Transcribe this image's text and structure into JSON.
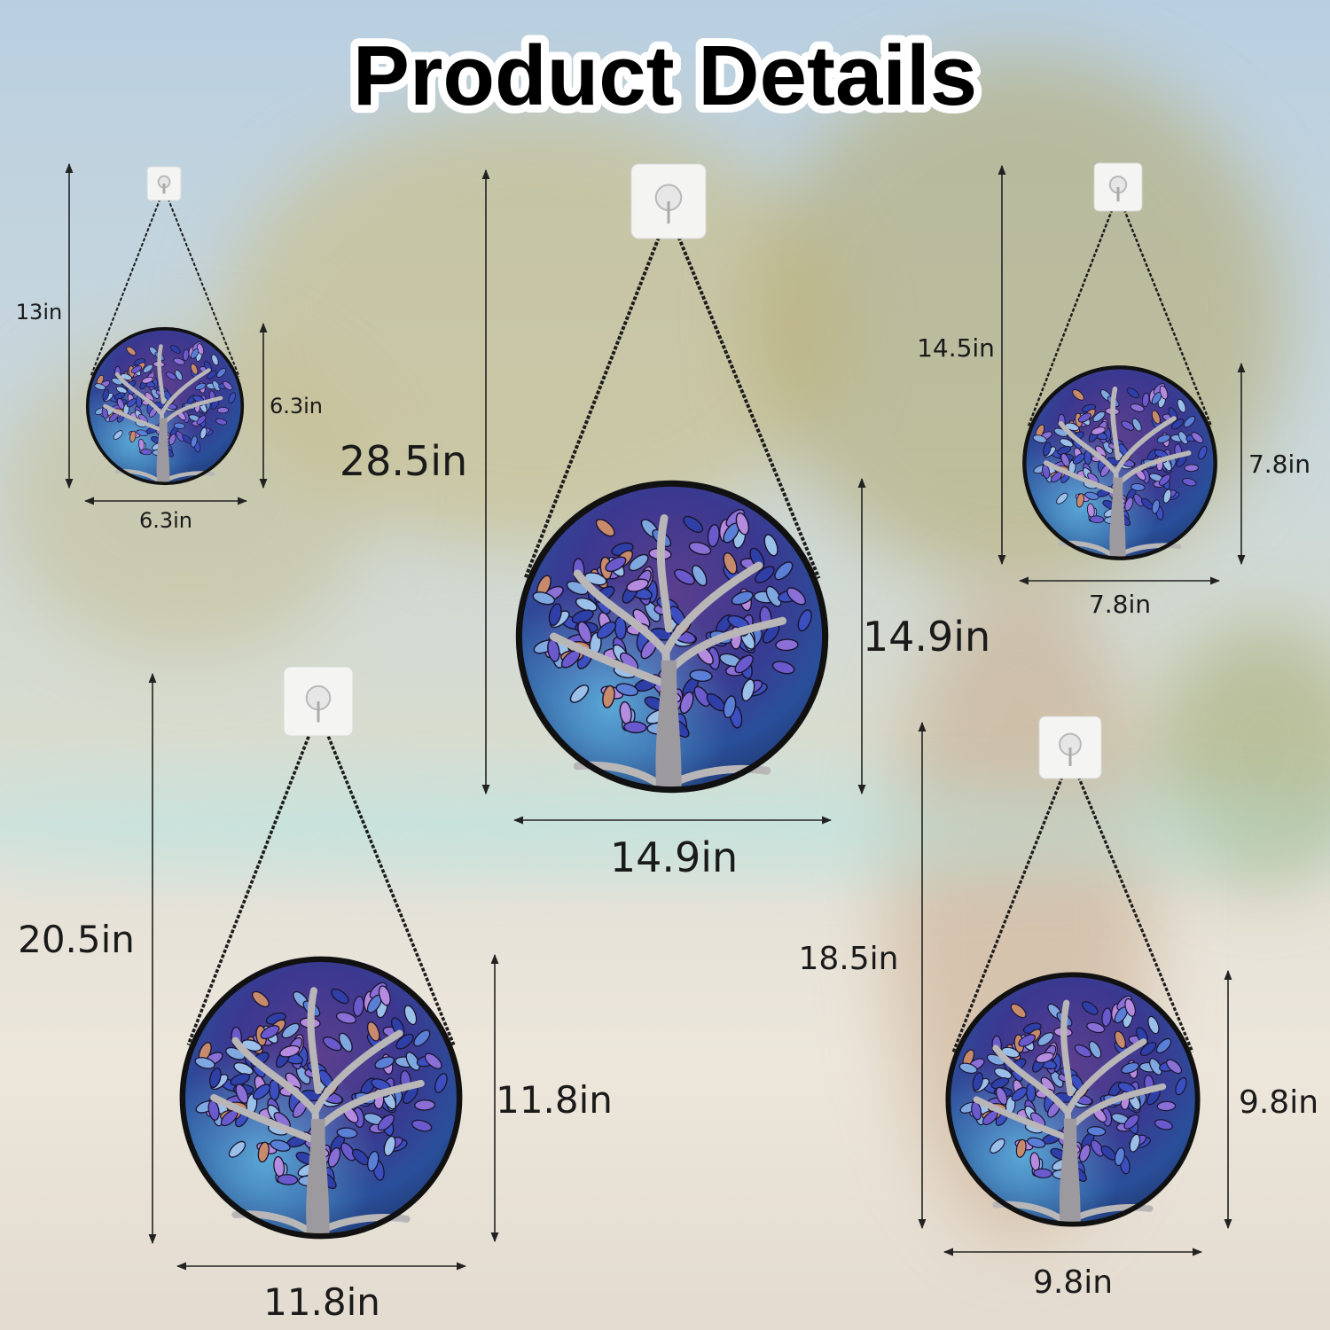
{
  "title": "Product Details",
  "products": [
    {
      "total_height": "13in",
      "diameter_height": "6.3in",
      "diameter_width": "6.3in"
    },
    {
      "total_height": "28.5in",
      "diameter_height": "14.9in",
      "diameter_width": "14.9in"
    },
    {
      "total_height": "14.5in",
      "diameter_height": "7.8in",
      "diameter_width": "7.8in"
    },
    {
      "total_height": "20.5in",
      "diameter_height": "11.8in",
      "diameter_width": "11.8in"
    },
    {
      "total_height": "18.5in",
      "diameter_height": "9.8in",
      "diameter_width": "9.8in"
    }
  ],
  "colors": {
    "glass_purple": "#4a3a8c",
    "glass_blue": "#2a4f9a",
    "glass_cyan": "#4f9ccf",
    "frame": "#111111",
    "arrow": "#222222"
  }
}
